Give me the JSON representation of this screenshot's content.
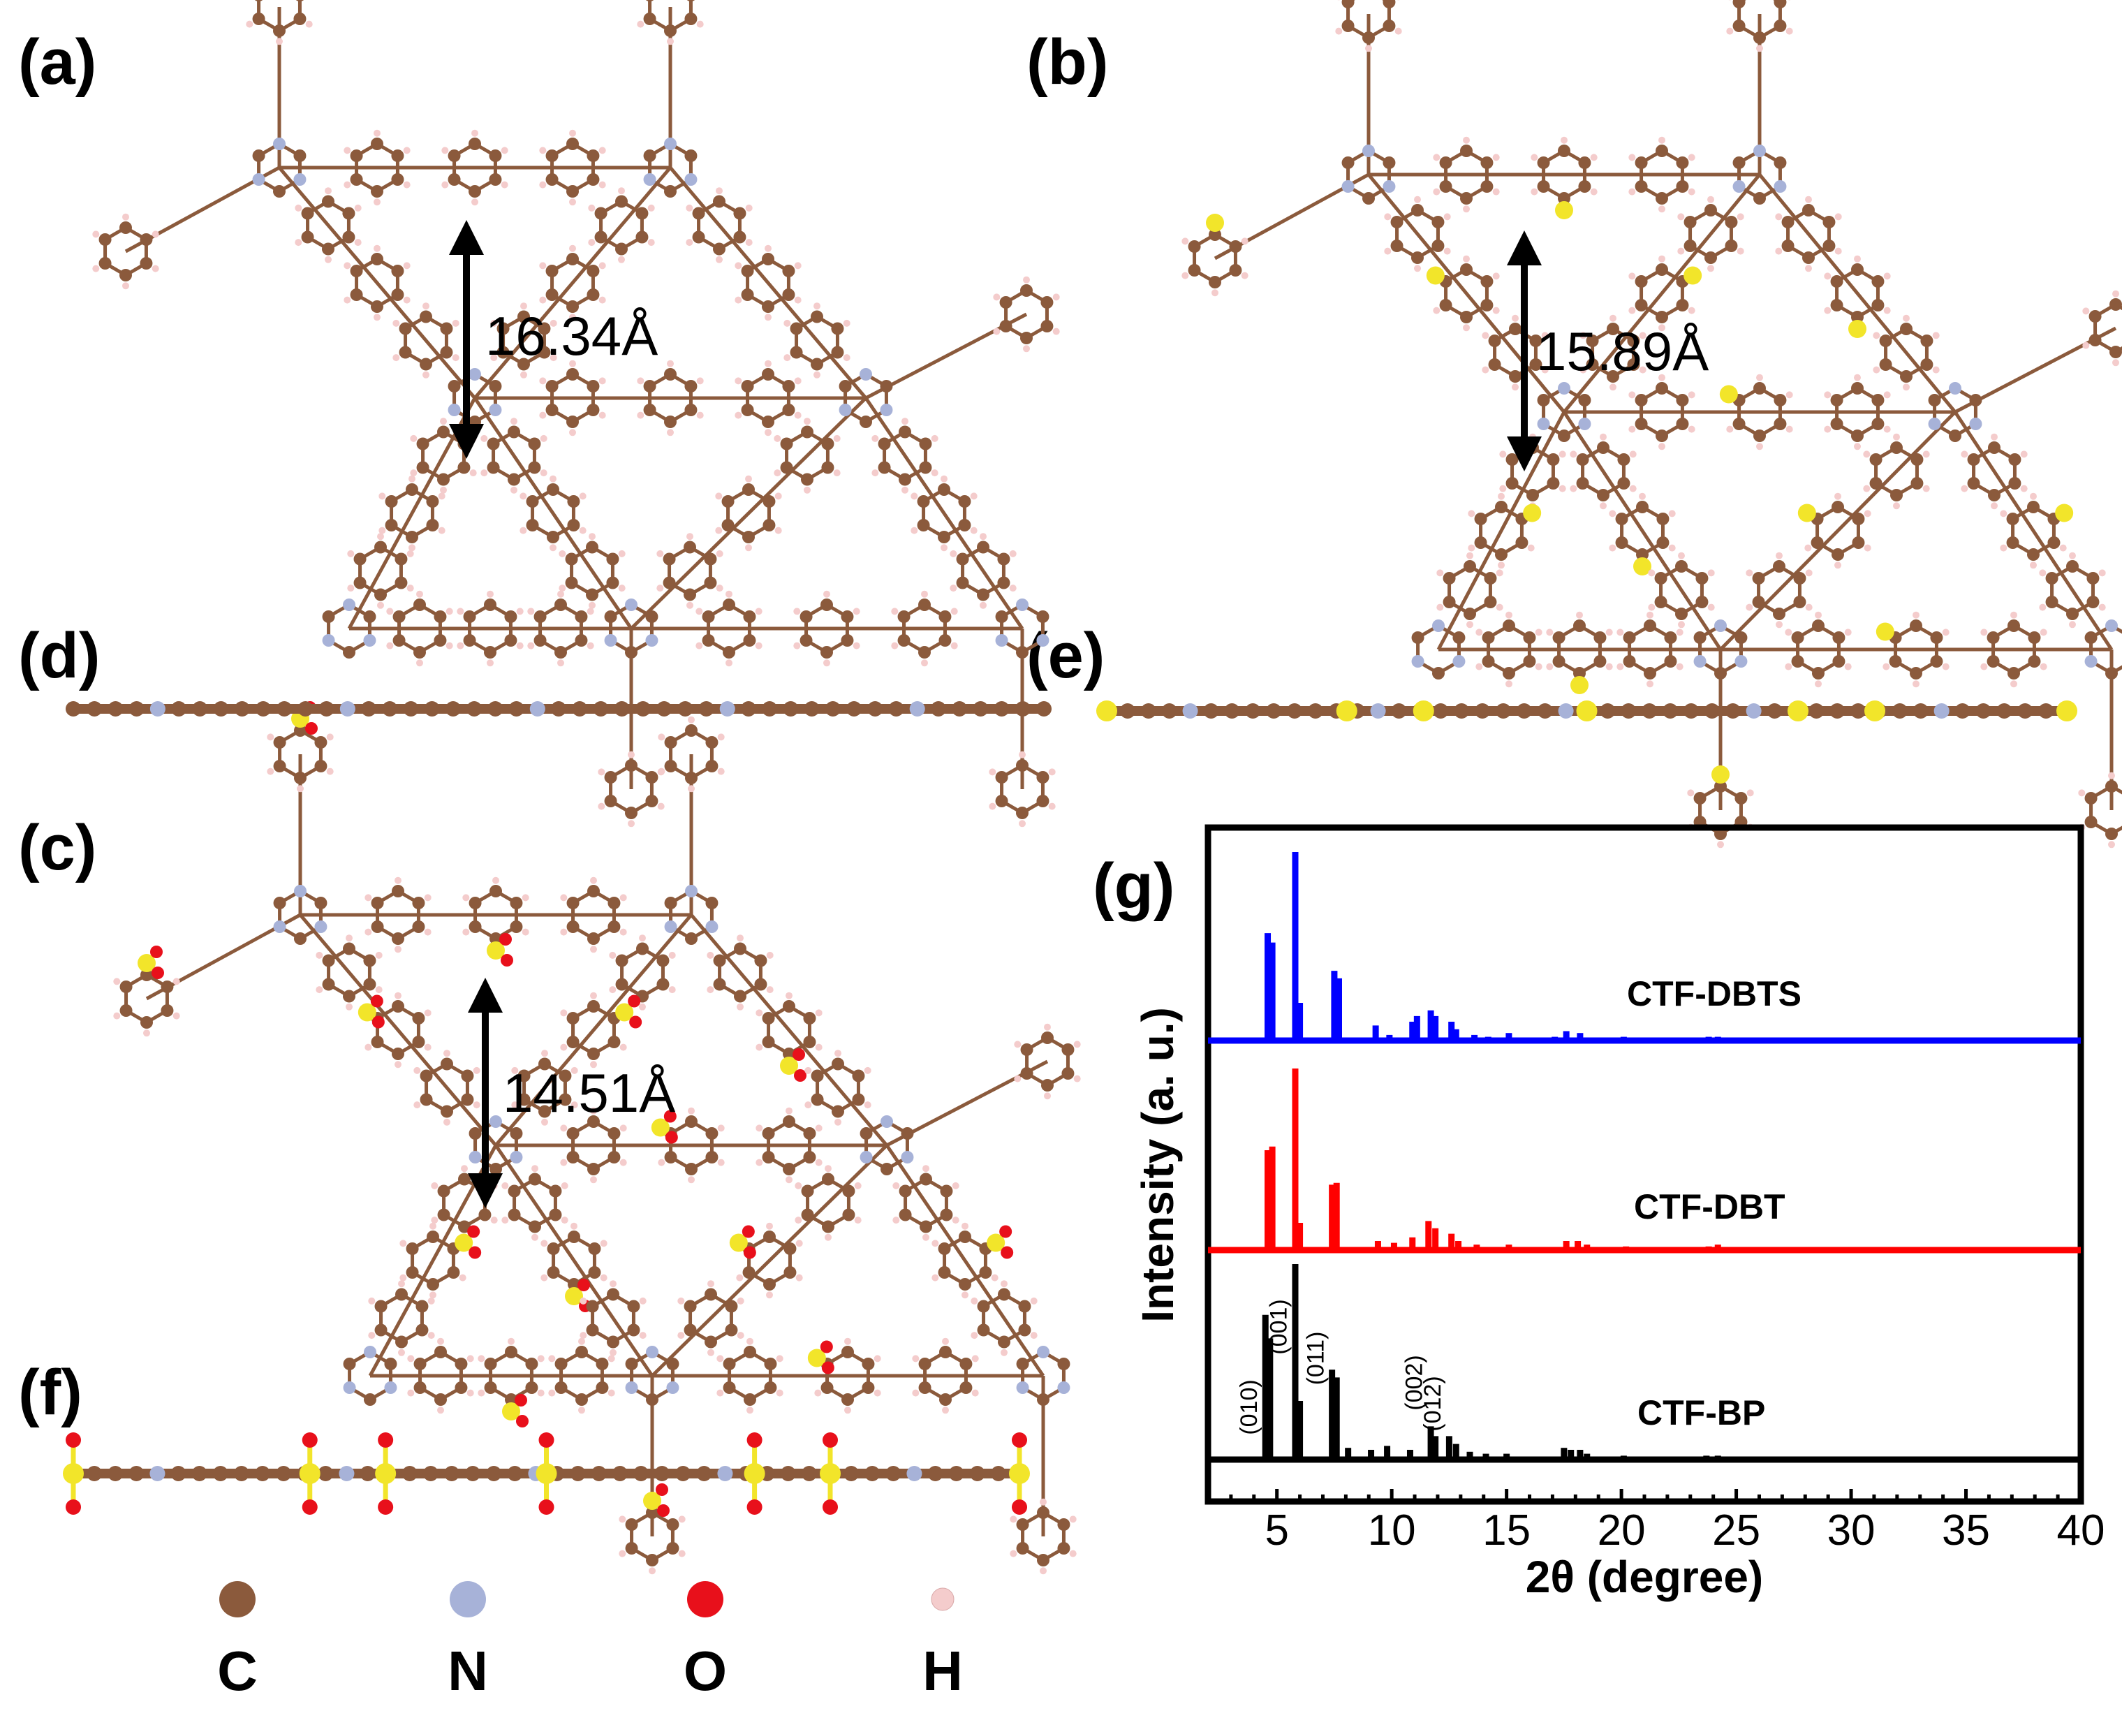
{
  "panels": {
    "a": "(a)",
    "b": "(b)",
    "c": "(c)",
    "d": "(d)",
    "e": "(e)",
    "f": "(f)",
    "g": "(g)"
  },
  "pore_sizes": {
    "a": "16.34Å",
    "b": "15.89Å",
    "c": "14.51Å"
  },
  "colors": {
    "C": "#8b5a3c",
    "N": "#a7b2d8",
    "O": "#e8101b",
    "H": "#f4cccc",
    "S": "#f2e52a",
    "bond": "#8b5a3c",
    "CTF-DBTS": "#0000ff",
    "CTF-DBT": "#ff0000",
    "CTF-BP": "#000000"
  },
  "legend": [
    {
      "key": "C",
      "label": "C"
    },
    {
      "key": "N",
      "label": "N"
    },
    {
      "key": "O",
      "label": "O"
    },
    {
      "key": "H",
      "label": "H"
    }
  ],
  "chart_data": {
    "type": "line",
    "title": "",
    "xlabel": "2θ (degree)",
    "ylabel": "Intensity (a. u.)",
    "xlim": [
      2,
      40
    ],
    "xticks": [
      "5",
      "10",
      "15",
      "20",
      "25",
      "30",
      "35",
      "40"
    ],
    "series": [
      {
        "name": "CTF-DBTS",
        "peaks": [
          [
            4.6,
            0.57
          ],
          [
            4.8,
            0.52
          ],
          [
            5.8,
            1.0
          ],
          [
            6.0,
            0.2
          ],
          [
            7.5,
            0.37
          ],
          [
            7.7,
            0.33
          ],
          [
            9.3,
            0.08
          ],
          [
            9.9,
            0.03
          ],
          [
            10.9,
            0.1
          ],
          [
            11.1,
            0.13
          ],
          [
            11.7,
            0.16
          ],
          [
            11.9,
            0.13
          ],
          [
            12.6,
            0.1
          ],
          [
            12.8,
            0.06
          ],
          [
            13.6,
            0.03
          ],
          [
            14.2,
            0.02
          ],
          [
            15.1,
            0.04
          ],
          [
            17.1,
            0.02
          ],
          [
            17.6,
            0.05
          ],
          [
            18.2,
            0.04
          ],
          [
            20.1,
            0.02
          ],
          [
            23.8,
            0.02
          ],
          [
            24.2,
            0.02
          ]
        ]
      },
      {
        "name": "CTF-DBT",
        "peaks": [
          [
            4.6,
            0.55
          ],
          [
            4.8,
            0.57
          ],
          [
            5.8,
            1.0
          ],
          [
            6.0,
            0.15
          ],
          [
            7.4,
            0.36
          ],
          [
            7.6,
            0.37
          ],
          [
            9.4,
            0.05
          ],
          [
            10.1,
            0.04
          ],
          [
            10.9,
            0.07
          ],
          [
            11.6,
            0.16
          ],
          [
            11.9,
            0.12
          ],
          [
            12.6,
            0.09
          ],
          [
            12.9,
            0.05
          ],
          [
            13.7,
            0.03
          ],
          [
            15.1,
            0.03
          ],
          [
            17.6,
            0.05
          ],
          [
            18.1,
            0.05
          ],
          [
            18.5,
            0.03
          ],
          [
            20.2,
            0.02
          ],
          [
            23.8,
            0.02
          ],
          [
            24.2,
            0.03
          ],
          [
            29.8,
            0.01
          ]
        ]
      },
      {
        "name": "CTF-BP",
        "peaks": [
          [
            4.5,
            0.74
          ],
          [
            4.7,
            0.62
          ],
          [
            5.8,
            1.0
          ],
          [
            6.0,
            0.3
          ],
          [
            7.4,
            0.46
          ],
          [
            7.6,
            0.42
          ],
          [
            8.1,
            0.06
          ],
          [
            9.1,
            0.05
          ],
          [
            9.8,
            0.07
          ],
          [
            10.8,
            0.05
          ],
          [
            11.7,
            0.17
          ],
          [
            11.9,
            0.12
          ],
          [
            12.5,
            0.12
          ],
          [
            12.8,
            0.08
          ],
          [
            13.4,
            0.04
          ],
          [
            14.1,
            0.03
          ],
          [
            15.0,
            0.03
          ],
          [
            17.5,
            0.06
          ],
          [
            17.8,
            0.05
          ],
          [
            18.2,
            0.05
          ],
          [
            18.5,
            0.03
          ],
          [
            20.1,
            0.02
          ],
          [
            23.7,
            0.02
          ],
          [
            24.2,
            0.02
          ],
          [
            25.4,
            0.015
          ],
          [
            29.8,
            0.01
          ],
          [
            36.0,
            0.01
          ]
        ]
      }
    ],
    "annotations": [
      {
        "x": 4.55,
        "label": "(010)"
      },
      {
        "x": 5.85,
        "label": "(001)"
      },
      {
        "x": 7.45,
        "label": "(011)"
      },
      {
        "x": 11.75,
        "label": "(002)"
      },
      {
        "x": 12.55,
        "label": "(012)"
      }
    ]
  }
}
